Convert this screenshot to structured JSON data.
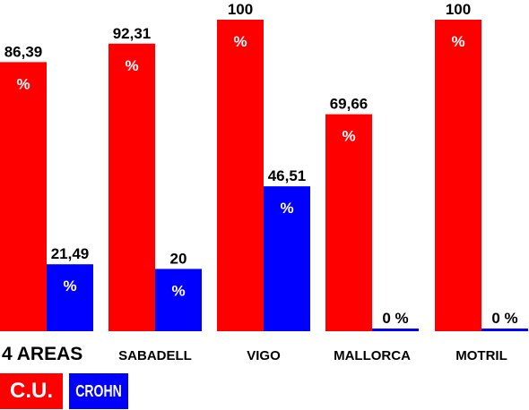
{
  "chart_data": {
    "type": "bar",
    "categories": [
      "4 AREAS",
      "SABADELL",
      "VIGO",
      "MALLORCA",
      "MOTRIL"
    ],
    "series": [
      {
        "name": "C.U.",
        "color": "#ff0000",
        "values": [
          86.39,
          92.31,
          100,
          69.66,
          100
        ],
        "value_labels": [
          "86,39",
          "92,31",
          "100",
          "69,66",
          "100"
        ],
        "unit_labels": [
          "%",
          "%",
          "%",
          "%",
          "%"
        ]
      },
      {
        "name": "CROHN",
        "color": "#0000ff",
        "values": [
          21.49,
          20,
          46.51,
          0,
          0
        ],
        "value_labels": [
          "21,49",
          "20",
          "46,51",
          "0 %",
          "0 %"
        ],
        "unit_labels": [
          "%",
          "%",
          "%",
          "",
          ""
        ]
      }
    ],
    "ylim": [
      0,
      100
    ],
    "grid": false,
    "legend_position": "bottom-left"
  }
}
